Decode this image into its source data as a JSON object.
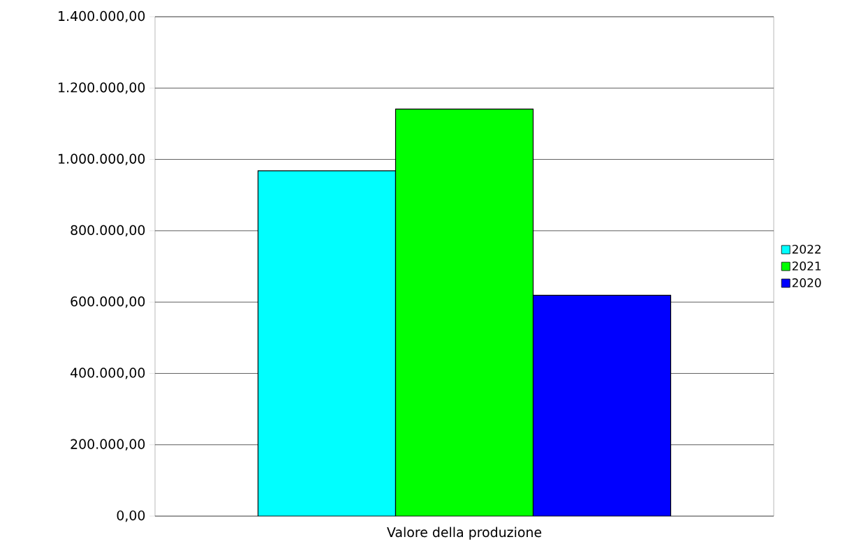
{
  "chart_data": {
    "type": "bar",
    "categories": [
      "Valore della produzione"
    ],
    "series": [
      {
        "name": "2022",
        "color": "#00ffff",
        "values": [
          968000
        ]
      },
      {
        "name": "2021",
        "color": "#00ff00",
        "values": [
          1141000
        ]
      },
      {
        "name": "2020",
        "color": "#0000ff",
        "values": [
          619000
        ]
      }
    ],
    "ylim": [
      0,
      1400000
    ],
    "yticks": [
      {
        "value": 0,
        "label": "0,00"
      },
      {
        "value": 200000,
        "label": "200.000,00"
      },
      {
        "value": 400000,
        "label": "400.000,00"
      },
      {
        "value": 600000,
        "label": "600.000,00"
      },
      {
        "value": 800000,
        "label": "800.000,00"
      },
      {
        "value": 1000000,
        "label": "1.000.000,00"
      },
      {
        "value": 1200000,
        "label": "1.200.000,00"
      },
      {
        "value": 1400000,
        "label": "1.400.000,00"
      }
    ],
    "grid": "y",
    "legend": "right"
  }
}
